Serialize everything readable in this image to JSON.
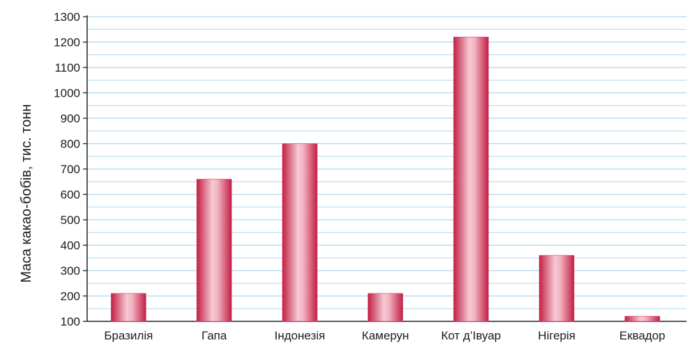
{
  "chart_data": {
    "type": "bar",
    "title": "",
    "xlabel": "",
    "ylabel": "Маса какао-бобів, тис. тонн",
    "categories": [
      "Бразилія",
      "Гапа",
      "Індонезія",
      "Камерун",
      "Кот д’Івуар",
      "Нігерія",
      "Еквадор"
    ],
    "values": [
      210,
      660,
      800,
      210,
      1220,
      360,
      120
    ],
    "ylim": [
      100,
      1300
    ],
    "yticks": [
      "100",
      "200",
      "300",
      "400",
      "500",
      "600",
      "700",
      "800",
      "900",
      "1000",
      "1100",
      "1200",
      "1300"
    ],
    "minor_gridlines_per_major": 2,
    "grid": true,
    "legend": "none",
    "colors": {
      "bar_edge": "#d83a5c",
      "bar_mid": "#f6c9d3",
      "bar_dark": "#c21f45",
      "grid": "#a9d9ef",
      "axis": "#222222"
    }
  }
}
